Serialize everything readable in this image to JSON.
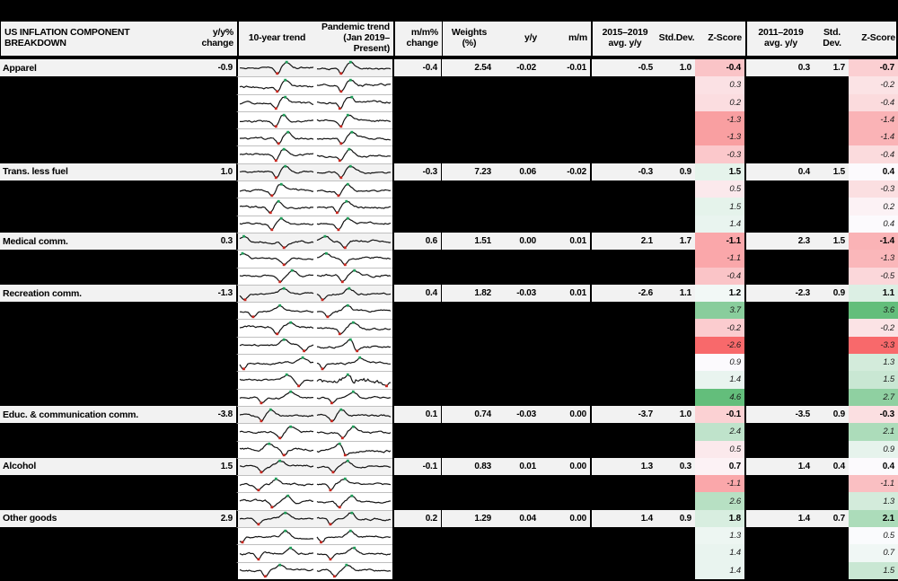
{
  "colors": {
    "header_bg": "#F2F2F2",
    "main_row_bg": "#F2F2F2",
    "redacted": "#000000",
    "border": "#000000",
    "spark_divider": "#BFBFBF",
    "spark_line": "#141414",
    "spark_high": "#1FA05A",
    "spark_low": "#C9251D",
    "scale_red": "#F8696B",
    "scale_white": "#FCFCFF",
    "scale_green": "#63BE7B"
  },
  "chart_data": {
    "type": "table",
    "title": "US INFLATION COMPONENT BREAKDOWN",
    "columns": {
      "yy_change": "y/y%\nchange",
      "trend_10yr": "10-year trend",
      "trend_pandemic": "Pandemic trend\n(Jan 2019–Present)",
      "mm_change": "m/m%\nchange",
      "weights": "Weights\n(%)",
      "yy": "y/y",
      "mm": "m/m",
      "avg_2015_2019": "2015–2019\navg. y/y",
      "sd_2015_2019": "Std.Dev.",
      "z_2015_2019": "Z-Score",
      "avg_2011_2019": "2011–2019\navg. y/y",
      "sd_2011_2019": "Std. Dev.",
      "z_2011_2019": "Z-Score"
    },
    "z_color_scales": {
      "z_2015_2019": {
        "min": -2.6,
        "mid": 0.95,
        "max": 4.6
      },
      "z_2011_2019": {
        "min": -3.3,
        "mid": 0.45,
        "max": 3.6
      }
    },
    "sections": [
      {
        "label": "Apparel",
        "main": {
          "yy_change": "-0.9",
          "mm_change": "-0.4",
          "weights": "2.54",
          "yy": "-0.02",
          "mm": "-0.01",
          "avg_2015_2019": "-0.5",
          "sd_2015_2019": "1.0",
          "z_2015_2019": "-0.4",
          "avg_2011_2019": "0.3",
          "sd_2011_2019": "1.7",
          "z_2011_2019": "-0.7"
        },
        "spark": {
          "s": 11,
          "d": 0.52,
          "p": 0.63
        },
        "subs": [
          {
            "z_2015_2019": "0.3",
            "z_2011_2019": "-0.2",
            "spark": {
              "s": 12,
              "d": 0.52,
              "p": 0.62
            }
          },
          {
            "z_2015_2019": "0.2",
            "z_2011_2019": "-0.4",
            "spark": {
              "s": 13,
              "d": 0.5,
              "p": 0.6
            }
          },
          {
            "z_2015_2019": "-1.3",
            "z_2011_2019": "-1.4",
            "spark": {
              "s": 14,
              "d": 0.5,
              "p": 0.58
            }
          },
          {
            "z_2015_2019": "-1.3",
            "z_2011_2019": "-1.4",
            "spark": {
              "s": 15,
              "d": 0.53,
              "p": 0.65
            }
          },
          {
            "z_2015_2019": "-0.3",
            "z_2011_2019": "-0.4",
            "spark": {
              "s": 16,
              "d": 0.5,
              "p": 0.6
            }
          }
        ]
      },
      {
        "label": "Trans. less fuel",
        "main": {
          "yy_change": "1.0",
          "mm_change": "-0.3",
          "weights": "7.23",
          "yy": "0.06",
          "mm": "-0.02",
          "avg_2015_2019": "-0.3",
          "sd_2015_2019": "0.9",
          "z_2015_2019": "1.5",
          "avg_2011_2019": "0.4",
          "sd_2011_2019": "1.5",
          "z_2011_2019": "0.4"
        },
        "spark": {
          "s": 21,
          "d": 0.5,
          "p": 0.62
        },
        "subs": [
          {
            "z_2015_2019": "0.5",
            "z_2011_2019": "-0.3",
            "spark": {
              "s": 22,
              "d": 0.45,
              "p": 0.55
            }
          },
          {
            "z_2015_2019": "1.5",
            "z_2011_2019": "0.2",
            "spark": {
              "s": 23,
              "d": 0.42,
              "p": 0.53
            }
          },
          {
            "z_2015_2019": "1.4",
            "z_2011_2019": "0.4",
            "spark": {
              "s": 24,
              "d": 0.44,
              "p": 0.56
            }
          }
        ]
      },
      {
        "label": "Medical comm.",
        "main": {
          "yy_change": "0.3",
          "mm_change": "0.6",
          "weights": "1.51",
          "yy": "0.00",
          "mm": "0.01",
          "avg_2015_2019": "2.1",
          "sd_2015_2019": "1.7",
          "z_2015_2019": "-1.1",
          "avg_2011_2019": "2.3",
          "sd_2011_2019": "1.5",
          "z_2011_2019": "-1.4"
        },
        "spark": {
          "s": 31,
          "d": 0.6,
          "p": 0.05
        },
        "subs": [
          {
            "z_2015_2019": "-1.1",
            "z_2011_2019": "-1.3",
            "spark": {
              "s": 32,
              "d": 0.6,
              "p": 0.05
            }
          },
          {
            "z_2015_2019": "-0.4",
            "z_2011_2019": "-0.5",
            "spark": {
              "s": 33,
              "d": 0.55,
              "p": 0.72
            }
          }
        ]
      },
      {
        "label": "Recreation comm.",
        "main": {
          "yy_change": "-1.3",
          "mm_change": "0.4",
          "weights": "1.82",
          "yy": "-0.03",
          "mm": "0.01",
          "avg_2015_2019": "-2.6",
          "sd_2015_2019": "1.1",
          "z_2015_2019": "1.2",
          "avg_2011_2019": "-2.3",
          "sd_2011_2019": "0.9",
          "z_2011_2019": "1.1"
        },
        "spark": {
          "s": 41,
          "d": 0.06,
          "p": 0.6
        },
        "subs": [
          {
            "z_2015_2019": "3.7",
            "z_2011_2019": "3.6",
            "spark": {
              "s": 42,
              "d": 0.18,
              "p": 0.55
            }
          },
          {
            "z_2015_2019": "-0.2",
            "z_2011_2019": "-0.2",
            "spark": {
              "s": 43,
              "d": 0.5,
              "p": 0.7
            }
          },
          {
            "z_2015_2019": "-2.6",
            "z_2011_2019": "-3.3",
            "spark": {
              "s": 44,
              "d": 0.88,
              "p": 0.6
            }
          },
          {
            "z_2015_2019": "0.9",
            "z_2011_2019": "1.3",
            "spark": {
              "s": 45,
              "d": 0.05,
              "p": 0.85
            }
          },
          {
            "z_2015_2019": "1.4",
            "z_2011_2019": "1.5",
            "spark": {
              "s": 46,
              "d": 0.8,
              "p": 0.65
            }
          },
          {
            "z_2015_2019": "4.6",
            "z_2011_2019": "2.7",
            "spark": {
              "s": 47,
              "d": 0.3,
              "p": 0.7
            }
          }
        ]
      },
      {
        "label": "Educ. & communication comm.",
        "main": {
          "yy_change": "-3.8",
          "mm_change": "0.1",
          "weights": "0.74",
          "yy": "-0.03",
          "mm": "0.00",
          "avg_2015_2019": "-3.7",
          "sd_2015_2019": "1.0",
          "z_2015_2019": "-0.1",
          "avg_2011_2019": "-3.5",
          "sd_2011_2019": "0.9",
          "z_2011_2019": "-0.3"
        },
        "spark": {
          "s": 51,
          "d": 0.3,
          "p": 0.42
        },
        "subs": [
          {
            "z_2015_2019": "2.4",
            "z_2011_2019": "2.1",
            "spark": {
              "s": 52,
              "d": 0.55,
              "p": 0.7
            }
          },
          {
            "z_2015_2019": "0.5",
            "z_2011_2019": "0.9",
            "spark": {
              "s": 53,
              "d": 0.6,
              "p": 0.4
            }
          }
        ]
      },
      {
        "label": "Alcohol",
        "main": {
          "yy_change": "1.5",
          "mm_change": "-0.1",
          "weights": "0.83",
          "yy": "0.01",
          "mm": "0.00",
          "avg_2015_2019": "1.3",
          "sd_2015_2019": "0.3",
          "z_2015_2019": "0.7",
          "avg_2011_2019": "1.4",
          "sd_2011_2019": "0.4",
          "z_2011_2019": "0.4"
        },
        "spark": {
          "s": 61,
          "d": 0.3,
          "p": 0.55
        },
        "subs": [
          {
            "z_2015_2019": "-1.1",
            "z_2011_2019": "-1.1",
            "spark": {
              "s": 62,
              "d": 0.25,
              "p": 0.5
            }
          },
          {
            "z_2015_2019": "2.6",
            "z_2011_2019": "1.3",
            "spark": {
              "s": 63,
              "d": 0.45,
              "p": 0.65
            }
          }
        ]
      },
      {
        "label": "Other goods",
        "main": {
          "yy_change": "2.9",
          "mm_change": "0.2",
          "weights": "1.29",
          "yy": "0.04",
          "mm": "0.00",
          "avg_2015_2019": "1.4",
          "sd_2015_2019": "0.9",
          "z_2015_2019": "1.8",
          "avg_2011_2019": "1.4",
          "sd_2011_2019": "0.7",
          "z_2011_2019": "2.1"
        },
        "spark": {
          "s": 71,
          "d": 0.25,
          "p": 0.62
        },
        "subs": [
          {
            "z_2015_2019": "1.3",
            "z_2011_2019": "0.5",
            "spark": {
              "s": 72,
              "d": 0.03,
              "p": 0.62
            }
          },
          {
            "z_2015_2019": "1.4",
            "z_2011_2019": "0.7",
            "spark": {
              "s": 73,
              "d": 0.25,
              "p": 0.68
            }
          },
          {
            "z_2015_2019": "1.4",
            "z_2011_2019": "1.5",
            "spark": {
              "s": 74,
              "d": 0.35,
              "p": 0.57
            }
          }
        ]
      }
    ]
  }
}
